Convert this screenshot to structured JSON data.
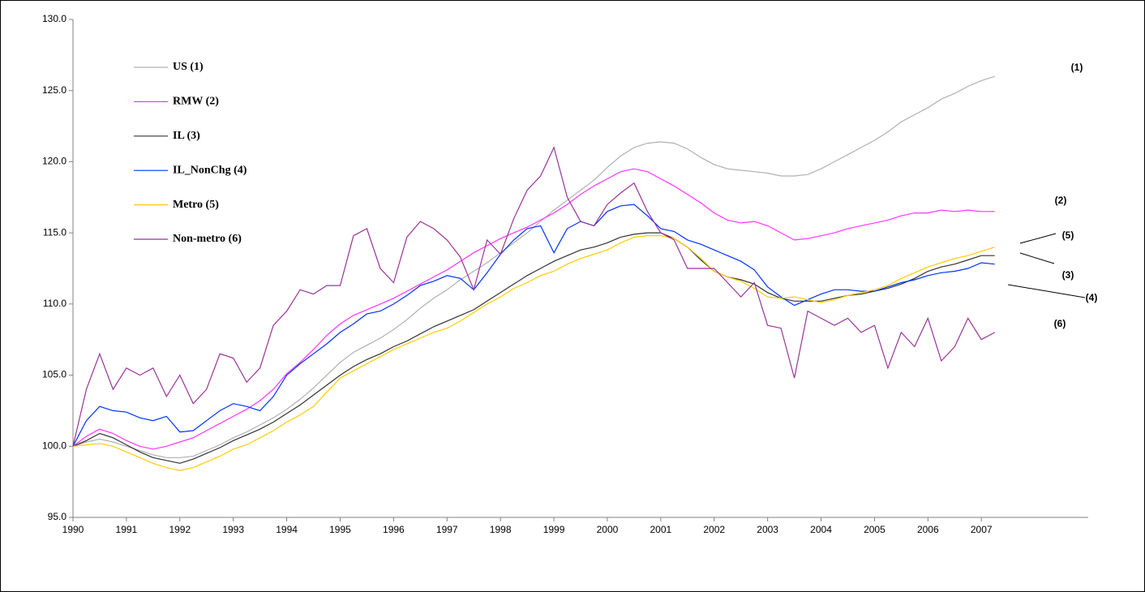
{
  "chart_data": {
    "type": "line",
    "x": [
      1990,
      1990.25,
      1990.5,
      1990.75,
      1991,
      1991.25,
      1991.5,
      1991.75,
      1992,
      1992.25,
      1992.5,
      1992.75,
      1993,
      1993.25,
      1993.5,
      1993.75,
      1994,
      1994.25,
      1994.5,
      1994.75,
      1995,
      1995.25,
      1995.5,
      1995.75,
      1996,
      1996.25,
      1996.5,
      1996.75,
      1997,
      1997.25,
      1997.5,
      1997.75,
      1998,
      1998.25,
      1998.5,
      1998.75,
      1999,
      1999.25,
      1999.5,
      1999.75,
      2000,
      2000.25,
      2000.5,
      2000.75,
      2001,
      2001.25,
      2001.5,
      2001.75,
      2002,
      2002.25,
      2002.5,
      2002.75,
      2003,
      2003.25,
      2003.5,
      2003.75,
      2004,
      2004.25,
      2004.5,
      2004.75,
      2005,
      2005.25,
      2005.5,
      2005.75,
      2006,
      2006.25,
      2006.5,
      2006.75,
      2007,
      2007.25
    ],
    "series": [
      {
        "name": "US (1)",
        "color": "#b0b0b0",
        "values": [
          100.0,
          100.3,
          100.5,
          100.3,
          100.0,
          99.7,
          99.4,
          99.2,
          99.2,
          99.3,
          99.7,
          100.1,
          100.6,
          101.0,
          101.5,
          102.0,
          102.6,
          103.3,
          104.1,
          105.0,
          105.9,
          106.6,
          107.1,
          107.6,
          108.2,
          108.9,
          109.7,
          110.4,
          111.0,
          111.7,
          112.3,
          112.9,
          113.6,
          114.3,
          115.0,
          115.8,
          116.6,
          117.3,
          118.0,
          118.7,
          119.6,
          120.4,
          121.0,
          121.3,
          121.4,
          121.3,
          120.9,
          120.3,
          119.8,
          119.5,
          119.4,
          119.3,
          119.2,
          119.0,
          119.0,
          119.1,
          119.5,
          120.0,
          120.5,
          121.0,
          121.5,
          122.1,
          122.8,
          123.3,
          123.8,
          124.4,
          124.8,
          125.3,
          125.7,
          126.0
        ]
      },
      {
        "name": "RMW (2)",
        "color": "#ff33ff",
        "values": [
          100.0,
          100.7,
          101.2,
          100.9,
          100.4,
          100.0,
          99.8,
          100.0,
          100.3,
          100.6,
          101.1,
          101.6,
          102.1,
          102.6,
          103.2,
          104.0,
          105.1,
          105.9,
          106.8,
          107.8,
          108.6,
          109.2,
          109.6,
          110.0,
          110.4,
          110.9,
          111.4,
          111.9,
          112.4,
          113.0,
          113.6,
          114.1,
          114.6,
          115.0,
          115.4,
          115.9,
          116.4,
          117.0,
          117.7,
          118.3,
          118.8,
          119.3,
          119.5,
          119.3,
          118.8,
          118.3,
          117.7,
          117.1,
          116.4,
          115.9,
          115.7,
          115.8,
          115.5,
          115.0,
          114.5,
          114.6,
          114.8,
          115.0,
          115.3,
          115.5,
          115.7,
          115.9,
          116.2,
          116.4,
          116.4,
          116.6,
          116.5,
          116.6,
          116.5,
          116.5
        ]
      },
      {
        "name": "IL (3)",
        "color": "#333333",
        "values": [
          100.0,
          100.4,
          100.9,
          100.6,
          100.1,
          99.6,
          99.2,
          99.0,
          98.8,
          99.1,
          99.5,
          99.9,
          100.4,
          100.8,
          101.2,
          101.7,
          102.3,
          102.9,
          103.6,
          104.3,
          105.0,
          105.6,
          106.1,
          106.5,
          107.0,
          107.4,
          107.9,
          108.4,
          108.8,
          109.2,
          109.6,
          110.2,
          110.8,
          111.4,
          112.0,
          112.5,
          113.0,
          113.4,
          113.8,
          114.0,
          114.3,
          114.7,
          114.9,
          115.0,
          115.0,
          114.6,
          114.0,
          113.1,
          112.3,
          111.9,
          111.7,
          111.4,
          110.8,
          110.4,
          110.2,
          110.2,
          110.2,
          110.4,
          110.6,
          110.7,
          110.9,
          111.1,
          111.4,
          111.8,
          112.3,
          112.6,
          112.8,
          113.1,
          113.4,
          113.4
        ]
      },
      {
        "name": "IL_NonChg (4)",
        "color": "#0033ff",
        "values": [
          100.0,
          101.8,
          102.8,
          102.5,
          102.4,
          102.0,
          101.8,
          102.1,
          101.0,
          101.1,
          101.8,
          102.5,
          103.0,
          102.8,
          102.5,
          103.5,
          105.0,
          105.8,
          106.5,
          107.2,
          108.0,
          108.6,
          109.3,
          109.5,
          110.0,
          110.6,
          111.3,
          111.6,
          112.0,
          111.8,
          111.0,
          112.2,
          113.5,
          114.5,
          115.3,
          115.5,
          113.6,
          115.3,
          115.8,
          115.5,
          116.5,
          116.9,
          117.0,
          116.2,
          115.3,
          115.1,
          114.5,
          114.2,
          113.8,
          113.4,
          113.0,
          112.4,
          111.2,
          110.5,
          109.9,
          110.3,
          110.7,
          111.0,
          111.0,
          110.9,
          110.9,
          111.2,
          111.5,
          111.7,
          112.0,
          112.2,
          112.3,
          112.5,
          112.9,
          112.8
        ]
      },
      {
        "name": "Metro (5)",
        "color": "#ffcc00",
        "values": [
          100.0,
          100.1,
          100.2,
          100.0,
          99.6,
          99.2,
          98.8,
          98.5,
          98.3,
          98.5,
          98.9,
          99.3,
          99.8,
          100.1,
          100.6,
          101.1,
          101.7,
          102.2,
          102.8,
          103.8,
          104.8,
          105.3,
          105.8,
          106.3,
          106.8,
          107.2,
          107.6,
          108.0,
          108.3,
          108.8,
          109.4,
          110.0,
          110.5,
          111.1,
          111.5,
          112.0,
          112.3,
          112.8,
          113.2,
          113.5,
          113.8,
          114.3,
          114.7,
          114.8,
          114.8,
          114.6,
          114.0,
          113.2,
          112.3,
          111.9,
          111.6,
          111.1,
          110.5,
          110.4,
          110.5,
          110.3,
          110.1,
          110.3,
          110.6,
          110.8,
          111.0,
          111.3,
          111.8,
          112.2,
          112.6,
          112.9,
          113.2,
          113.4,
          113.7,
          114.0
        ]
      },
      {
        "name": "Non-metro (6)",
        "color": "#993399",
        "values": [
          100.0,
          104.0,
          106.5,
          104.0,
          105.5,
          105.0,
          105.5,
          103.5,
          105.0,
          103.0,
          104.0,
          106.5,
          106.2,
          104.5,
          105.5,
          108.5,
          109.5,
          111.0,
          110.7,
          111.3,
          111.3,
          114.8,
          115.3,
          112.5,
          111.5,
          114.7,
          115.8,
          115.3,
          114.5,
          113.3,
          111.0,
          114.5,
          113.5,
          116.0,
          118.0,
          119.0,
          121.0,
          117.5,
          115.8,
          115.5,
          117.0,
          117.8,
          118.5,
          116.5,
          115.0,
          114.5,
          112.5,
          112.5,
          112.5,
          111.5,
          110.5,
          111.5,
          108.5,
          108.3,
          104.8,
          109.5,
          109.0,
          108.5,
          109.0,
          108.0,
          108.5,
          105.5,
          108.0,
          107.0,
          109.0,
          106.0,
          107.0,
          109.0,
          107.5,
          108.0
        ]
      }
    ],
    "annotations": [
      "(1)",
      "(2)",
      "(5)",
      "(3)",
      "(4)",
      "(6)"
    ],
    "xlim": [
      1990,
      2009
    ],
    "xticks": [
      1990,
      1991,
      1992,
      1993,
      1994,
      1995,
      1996,
      1997,
      1998,
      1999,
      2000,
      2001,
      2002,
      2003,
      2004,
      2005,
      2006,
      2007
    ],
    "ylim": [
      95,
      130
    ],
    "yticks": [
      {
        "value": 95,
        "label": "95.0"
      },
      {
        "value": 100,
        "label": "100.0"
      },
      {
        "value": 105,
        "label": "105.0"
      },
      {
        "value": 110,
        "label": "110.0"
      },
      {
        "value": 115,
        "label": "115.0"
      },
      {
        "value": 120,
        "label": "120.0"
      },
      {
        "value": 125,
        "label": "125.0"
      },
      {
        "value": 130,
        "label": "130.0"
      }
    ],
    "grid": false,
    "legend": "upper-left"
  }
}
